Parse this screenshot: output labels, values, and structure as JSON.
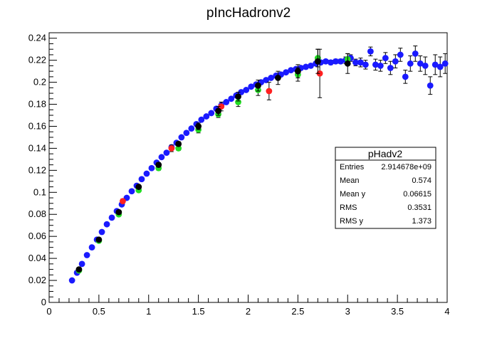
{
  "chart_data": {
    "type": "scatter",
    "title": "pIncHadronv2",
    "xlabel": "",
    "ylabel": "",
    "xlim": [
      0,
      4
    ],
    "ylim": [
      0,
      0.245
    ],
    "x_ticks": [
      "0",
      "0.5",
      "1",
      "1.5",
      "2",
      "2.5",
      "3",
      "3.5",
      "4"
    ],
    "y_ticks": [
      "0",
      "0.02",
      "0.04",
      "0.06",
      "0.08",
      "0.1",
      "0.12",
      "0.14",
      "0.16",
      "0.18",
      "0.2",
      "0.22",
      "0.24"
    ],
    "colors": {
      "blue": "#1a1aff",
      "green": "#22dd22",
      "red": "#ff2020",
      "black": "#000000"
    },
    "series": [
      {
        "color": "blue",
        "points": [
          [
            0.23,
            0.02,
            0
          ],
          [
            0.28,
            0.027,
            0
          ],
          [
            0.33,
            0.035,
            0
          ],
          [
            0.38,
            0.043,
            0
          ],
          [
            0.43,
            0.05,
            0
          ],
          [
            0.48,
            0.057,
            0
          ],
          [
            0.53,
            0.064,
            0
          ],
          [
            0.58,
            0.071,
            0
          ],
          [
            0.63,
            0.077,
            0
          ],
          [
            0.68,
            0.083,
            0
          ],
          [
            0.73,
            0.089,
            0
          ],
          [
            0.78,
            0.095,
            0
          ],
          [
            0.83,
            0.101,
            0
          ],
          [
            0.88,
            0.106,
            0
          ],
          [
            0.93,
            0.112,
            0
          ],
          [
            0.98,
            0.117,
            0
          ],
          [
            1.03,
            0.122,
            0
          ],
          [
            1.08,
            0.127,
            0
          ],
          [
            1.13,
            0.132,
            0
          ],
          [
            1.18,
            0.136,
            0
          ],
          [
            1.23,
            0.141,
            0
          ],
          [
            1.28,
            0.145,
            0
          ],
          [
            1.33,
            0.15,
            0
          ],
          [
            1.38,
            0.154,
            0
          ],
          [
            1.43,
            0.158,
            0
          ],
          [
            1.48,
            0.162,
            0
          ],
          [
            1.53,
            0.166,
            0
          ],
          [
            1.58,
            0.169,
            0
          ],
          [
            1.63,
            0.172,
            0
          ],
          [
            1.68,
            0.176,
            0
          ],
          [
            1.73,
            0.179,
            0
          ],
          [
            1.78,
            0.182,
            0
          ],
          [
            1.83,
            0.185,
            0
          ],
          [
            1.88,
            0.188,
            0
          ],
          [
            1.93,
            0.191,
            0
          ],
          [
            1.98,
            0.193,
            0
          ],
          [
            2.03,
            0.196,
            0
          ],
          [
            2.08,
            0.198,
            0
          ],
          [
            2.13,
            0.2,
            0
          ],
          [
            2.18,
            0.202,
            0
          ],
          [
            2.23,
            0.204,
            0
          ],
          [
            2.28,
            0.206,
            0
          ],
          [
            2.33,
            0.207,
            0
          ],
          [
            2.38,
            0.209,
            0
          ],
          [
            2.43,
            0.211,
            0
          ],
          [
            2.48,
            0.212,
            0
          ],
          [
            2.53,
            0.213,
            0
          ],
          [
            2.58,
            0.214,
            0
          ],
          [
            2.63,
            0.215,
            0
          ],
          [
            2.68,
            0.217,
            0
          ],
          [
            2.73,
            0.218,
            0
          ],
          [
            2.78,
            0.219,
            0
          ],
          [
            2.83,
            0.218,
            0.002
          ],
          [
            2.88,
            0.219,
            0.002
          ],
          [
            2.93,
            0.219,
            0.002
          ],
          [
            2.98,
            0.22,
            0.003
          ],
          [
            3.03,
            0.222,
            0.003
          ],
          [
            3.08,
            0.218,
            0.003
          ],
          [
            3.13,
            0.218,
            0.004
          ],
          [
            3.18,
            0.216,
            0.004
          ],
          [
            3.23,
            0.228,
            0.004
          ],
          [
            3.28,
            0.216,
            0.005
          ],
          [
            3.33,
            0.215,
            0.005
          ],
          [
            3.38,
            0.222,
            0.005
          ],
          [
            3.43,
            0.213,
            0.006
          ],
          [
            3.48,
            0.219,
            0.006
          ],
          [
            3.53,
            0.225,
            0.006
          ],
          [
            3.58,
            0.205,
            0.006
          ],
          [
            3.63,
            0.217,
            0.007
          ],
          [
            3.68,
            0.226,
            0.007
          ],
          [
            3.73,
            0.217,
            0.007
          ],
          [
            3.78,
            0.215,
            0.008
          ],
          [
            3.83,
            0.197,
            0.008
          ],
          [
            3.88,
            0.216,
            0.009
          ],
          [
            3.93,
            0.214,
            0.009
          ],
          [
            3.98,
            0.217,
            0.009
          ]
        ]
      },
      {
        "color": "green",
        "points": [
          [
            0.3,
            0.029,
            0
          ],
          [
            0.5,
            0.056,
            0
          ],
          [
            0.7,
            0.08,
            0
          ],
          [
            0.9,
            0.102,
            0
          ],
          [
            1.1,
            0.122,
            0.002
          ],
          [
            1.3,
            0.14,
            0.002
          ],
          [
            1.5,
            0.157,
            0.003
          ],
          [
            1.7,
            0.171,
            0.003
          ],
          [
            1.9,
            0.182,
            0.004
          ],
          [
            2.1,
            0.193,
            0.005
          ],
          [
            2.5,
            0.207,
            0.006
          ],
          [
            2.7,
            0.222,
            0.008
          ],
          [
            3.0,
            0.221,
            0.005
          ]
        ]
      },
      {
        "color": "red",
        "points": [
          [
            0.74,
            0.092,
            0.002
          ],
          [
            1.23,
            0.14,
            0.003
          ],
          [
            1.73,
            0.178,
            0.004
          ],
          [
            2.21,
            0.192,
            0.008
          ],
          [
            2.72,
            0.208,
            0.022
          ]
        ]
      },
      {
        "color": "black",
        "points": [
          [
            0.3,
            0.03,
            0
          ],
          [
            0.5,
            0.057,
            0
          ],
          [
            0.7,
            0.082,
            0
          ],
          [
            0.9,
            0.105,
            0
          ],
          [
            1.1,
            0.125,
            0.002
          ],
          [
            1.3,
            0.144,
            0.002
          ],
          [
            1.5,
            0.16,
            0.003
          ],
          [
            1.7,
            0.174,
            0.004
          ],
          [
            1.9,
            0.187,
            0.004
          ],
          [
            2.1,
            0.197,
            0.005
          ],
          [
            2.3,
            0.204,
            0.006
          ],
          [
            2.5,
            0.21,
            0.006
          ],
          [
            2.7,
            0.219,
            0.011
          ],
          [
            3.0,
            0.217,
            0.009
          ]
        ]
      }
    ]
  },
  "stats": {
    "title": "pHadv2",
    "rows": [
      {
        "label": "Entries",
        "value": "2.914678e+09"
      },
      {
        "label": "Mean",
        "value": "0.574"
      },
      {
        "label": "Mean y",
        "value": "0.06615"
      },
      {
        "label": "RMS",
        "value": "0.3531"
      },
      {
        "label": "RMS y",
        "value": "1.373"
      }
    ]
  }
}
